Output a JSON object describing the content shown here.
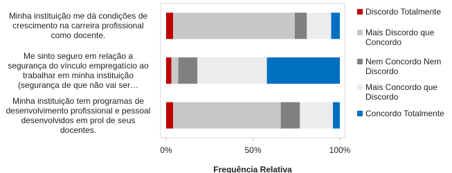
{
  "chart_data": {
    "type": "stacked-barh",
    "categories": [
      "Minha instituição me dá condições de crescimento na carreira profissional como docente.",
      "Me sinto seguro em relação a segurança do vínculo empregatício ao trabalhar em minha instituição (segurança de que não vai ser…",
      "Minha instituição tem programas de desenvolvimento profissional e pessoal desenvolvidos em prol de seus docentes."
    ],
    "series": [
      {
        "name": "Discordo Totalmente",
        "color": "#c00000",
        "values": [
          4,
          3,
          4
        ]
      },
      {
        "name": "Mais Discordo que Concordo",
        "color": "#c8c8c8",
        "values": [
          70,
          4,
          62
        ]
      },
      {
        "name": "Nem Concordo Nem Discordo",
        "color": "#808080",
        "values": [
          7,
          11,
          11
        ]
      },
      {
        "name": "Mais Concordo que Discordo",
        "color": "#ececec",
        "values": [
          14,
          40,
          19
        ]
      },
      {
        "name": "Concordo Totalmente",
        "color": "#0070c0",
        "values": [
          5,
          42,
          4
        ]
      }
    ],
    "xlim": [
      0,
      100
    ],
    "xticks": [
      {
        "value": 0,
        "label": "0%"
      },
      {
        "value": 50,
        "label": "50%"
      },
      {
        "value": 100,
        "label": "100%"
      }
    ],
    "xlabel": "Frequência Relativa",
    "legend": "right"
  }
}
